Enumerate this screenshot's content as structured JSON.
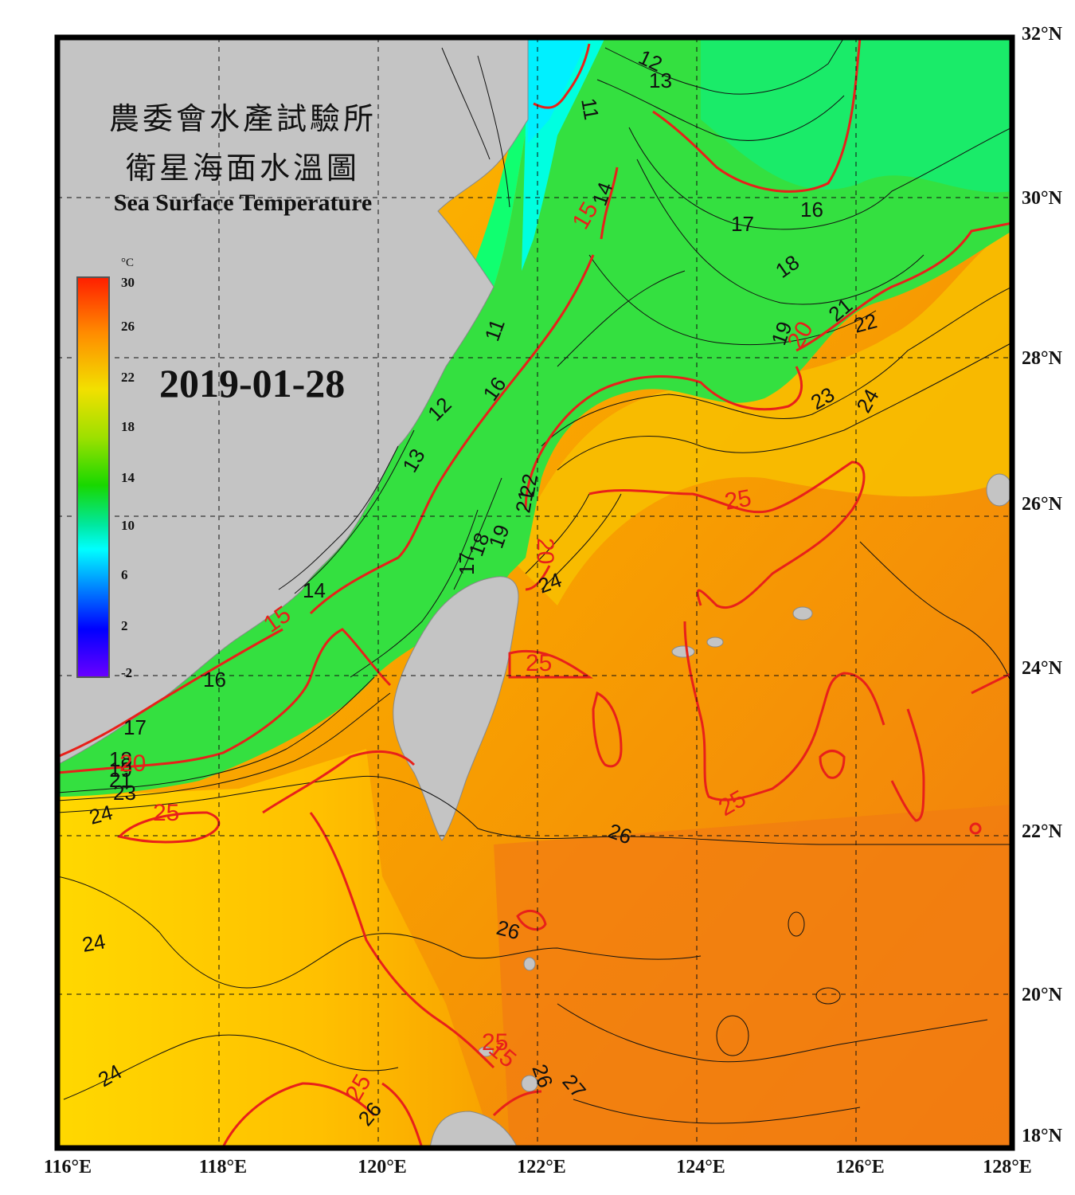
{
  "title_zh_1": "農委會水產試驗所",
  "title_zh_2": "衛星海面水溫圖",
  "title_en": "Sea Surface Temperature",
  "date": "2019-01-28",
  "colorbar": {
    "unit": "°C",
    "ticks": [
      "30",
      "26",
      "22",
      "18",
      "14",
      "10",
      "6",
      "2",
      "-2"
    ],
    "colors": [
      "#ff1e00",
      "#ff8c00",
      "#f2e000",
      "#9ee000",
      "#18d800",
      "#00e8a0",
      "#00ffff",
      "#0080ff",
      "#0000ff",
      "#6a00ff"
    ]
  },
  "lat_labels": [
    "32°N",
    "30°N",
    "28°N",
    "26°N",
    "24°N",
    "22°N",
    "20°N",
    "18°N"
  ],
  "lon_labels": [
    "116°E",
    "118°E",
    "120°E",
    "122°E",
    "124°E",
    "126°E",
    "128°E"
  ],
  "contour_labels_black": [
    "12",
    "13",
    "11",
    "14",
    "17",
    "16",
    "18",
    "21",
    "22",
    "19",
    "23",
    "24",
    "11",
    "16",
    "12",
    "13",
    "22",
    "21",
    "18",
    "19",
    "17",
    "24",
    "14",
    "16",
    "17",
    "18",
    "19",
    "21",
    "23",
    "24",
    "26",
    "26",
    "24",
    "24",
    "26",
    "26",
    "27"
  ],
  "contour_labels_red": [
    "15",
    "20",
    "15",
    "20",
    "25",
    "15",
    "20",
    "25",
    "25",
    "25",
    "25",
    "25"
  ],
  "colors": {
    "land": "#c4c4c4",
    "isotherm_major": "#e8201a",
    "isotherm_minor": "#111111",
    "grid": "#111111"
  }
}
